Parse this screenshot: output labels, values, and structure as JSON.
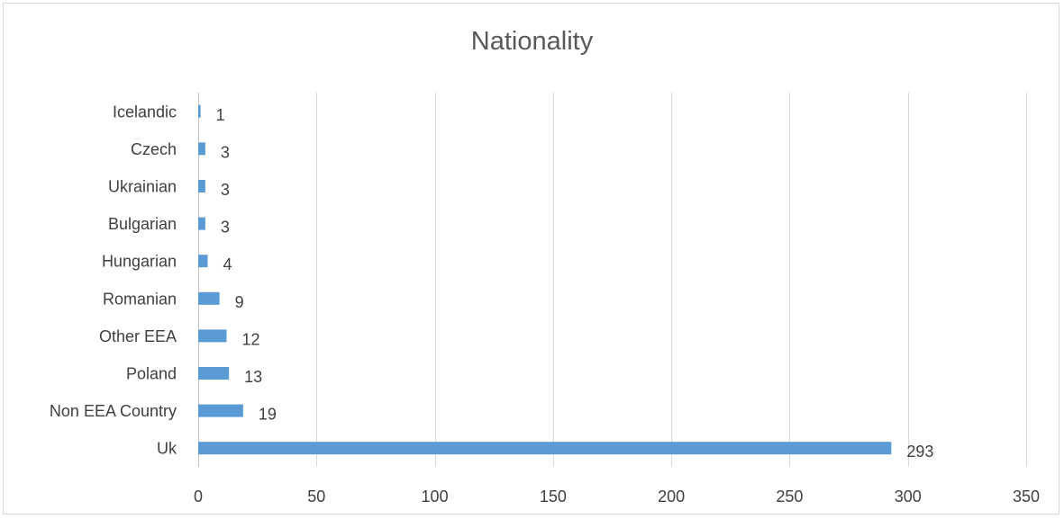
{
  "chart_data": {
    "type": "bar",
    "orientation": "horizontal",
    "title": "Nationality",
    "categories": [
      "Uk",
      "Non EEA Country",
      "Poland",
      "Other EEA",
      "Romanian",
      "Hungarian",
      "Bulgarian",
      "Ukrainian",
      "Czech",
      "Icelandic"
    ],
    "values": [
      293,
      19,
      13,
      12,
      9,
      4,
      3,
      3,
      3,
      1
    ],
    "xlim": [
      0,
      350
    ],
    "xticks": [
      0,
      50,
      100,
      150,
      200,
      250,
      300,
      350
    ],
    "grid": true,
    "data_labels": true,
    "bar_color": "#5b9bd5",
    "grid_color": "#d9d9d9"
  }
}
